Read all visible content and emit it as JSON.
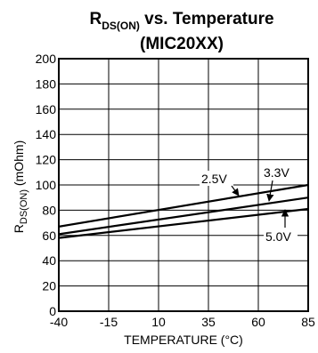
{
  "chart_data": {
    "type": "line",
    "title": {
      "main": "R",
      "subscript": "DS(ON)",
      "rest": " vs. Temperature"
    },
    "subtitle": "(MIC20XX)",
    "xlabel": "TEMPERATURE (°C)",
    "ylabel": {
      "main": "R",
      "subscript": "DS(ON)",
      "rest": " (mOhm)"
    },
    "xlim": [
      -40,
      85
    ],
    "ylim": [
      0,
      200
    ],
    "xticks": [
      -40,
      -15,
      10,
      35,
      60,
      85
    ],
    "yticks": [
      0,
      20,
      40,
      60,
      80,
      100,
      120,
      140,
      160,
      180,
      200
    ],
    "grid": true,
    "series": [
      {
        "name": "2.5V",
        "x": [
          -40,
          85
        ],
        "y": [
          67,
          100
        ]
      },
      {
        "name": "3.3V",
        "x": [
          -40,
          85
        ],
        "y": [
          61,
          90
        ]
      },
      {
        "name": "5.0V",
        "x": [
          -40,
          85
        ],
        "y": [
          58,
          81
        ]
      }
    ]
  }
}
